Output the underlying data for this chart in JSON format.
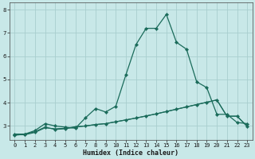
{
  "xlabel": "Humidex (Indice chaleur)",
  "bg_color": "#c8e8e8",
  "grid_color": "#a8cece",
  "line_color": "#1a6b5a",
  "x_ticks": [
    0,
    1,
    2,
    3,
    4,
    5,
    6,
    7,
    8,
    9,
    10,
    11,
    12,
    13,
    14,
    15,
    16,
    17,
    18,
    19,
    20,
    21,
    22,
    23
  ],
  "ylim": [
    2.4,
    8.3
  ],
  "xlim": [
    -0.5,
    23.5
  ],
  "series1_x": [
    0,
    1,
    2,
    3,
    4,
    5,
    6,
    7,
    8,
    9,
    10,
    11,
    12,
    13,
    14,
    15,
    16,
    17,
    18,
    19,
    20,
    21,
    22,
    23
  ],
  "series1_y": [
    2.6,
    2.65,
    2.8,
    3.1,
    3.0,
    2.95,
    2.9,
    3.35,
    3.75,
    3.6,
    3.85,
    5.2,
    6.5,
    7.2,
    7.2,
    7.8,
    6.6,
    6.3,
    4.9,
    4.65,
    3.5,
    3.5,
    3.15,
    3.1
  ],
  "series2_x": [
    0,
    1,
    2,
    3,
    4,
    5,
    6,
    7,
    8,
    9,
    10,
    11,
    12,
    13,
    14,
    15,
    16,
    17,
    18,
    19,
    20,
    21,
    22,
    23
  ],
  "series2_y": [
    2.65,
    2.65,
    2.75,
    2.95,
    2.85,
    2.88,
    2.95,
    3.0,
    3.06,
    3.1,
    3.18,
    3.26,
    3.34,
    3.43,
    3.52,
    3.62,
    3.72,
    3.82,
    3.92,
    4.02,
    4.12,
    3.42,
    3.42,
    2.98
  ],
  "series3_x": [
    0,
    1,
    2,
    3,
    4,
    5,
    6,
    7,
    8,
    9,
    10,
    11,
    12,
    13,
    14,
    15,
    16,
    17,
    18,
    19,
    20,
    21,
    22,
    23
  ],
  "series3_y": [
    2.62,
    2.62,
    2.72,
    2.92,
    2.88,
    2.9,
    2.97,
    3.0,
    3.06,
    3.1,
    3.18,
    3.26,
    3.34,
    3.43,
    3.52,
    3.62,
    3.72,
    3.82,
    3.92,
    4.02,
    4.12,
    3.42,
    3.42,
    2.98
  ]
}
